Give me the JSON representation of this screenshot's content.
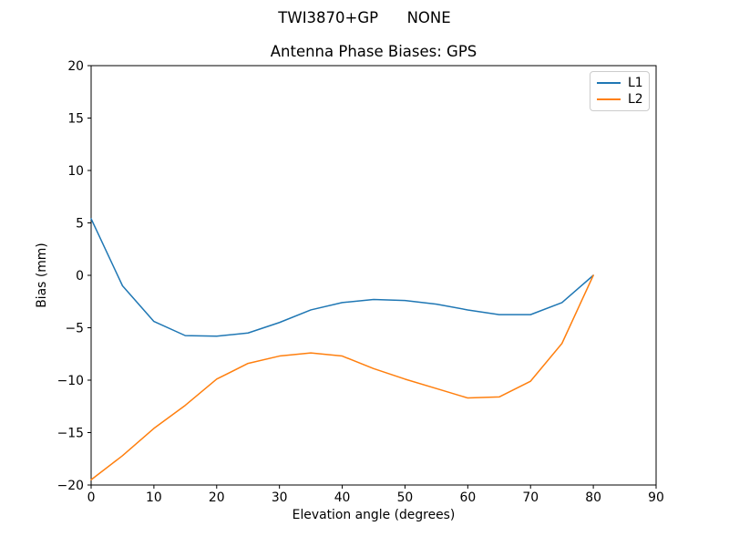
{
  "figure": {
    "suptitle": "TWI3870+GP      NONE"
  },
  "chart_data": {
    "type": "line",
    "title": "Antenna Phase Biases: GPS",
    "xlabel": "Elevation angle (degrees)",
    "ylabel": "Bias (mm)",
    "xlim": [
      0,
      90
    ],
    "ylim": [
      -20,
      20
    ],
    "xticks": [
      0,
      10,
      20,
      30,
      40,
      50,
      60,
      70,
      80,
      90
    ],
    "yticks": [
      -20,
      -15,
      -10,
      -5,
      0,
      5,
      10,
      15,
      20
    ],
    "grid": false,
    "legend": {
      "position": "upper right"
    },
    "x": [
      0,
      5,
      10,
      15,
      20,
      25,
      30,
      35,
      40,
      45,
      50,
      55,
      60,
      65,
      70,
      75,
      80
    ],
    "series": [
      {
        "name": "L1",
        "color": "#1f77b4",
        "values": [
          5.4,
          -1.0,
          -4.4,
          -5.75,
          -5.8,
          -5.5,
          -4.5,
          -3.3,
          -2.6,
          -2.3,
          -2.4,
          -2.75,
          -3.3,
          -3.75,
          -3.75,
          -2.6,
          0.0
        ]
      },
      {
        "name": "L2",
        "color": "#ff7f0e",
        "values": [
          -19.5,
          -17.2,
          -14.6,
          -12.4,
          -9.9,
          -8.4,
          -7.7,
          -7.4,
          -7.7,
          -8.9,
          -9.9,
          -10.8,
          -11.7,
          -11.6,
          -10.1,
          -6.5,
          0.0
        ]
      }
    ],
    "frame_color": "#000000"
  }
}
